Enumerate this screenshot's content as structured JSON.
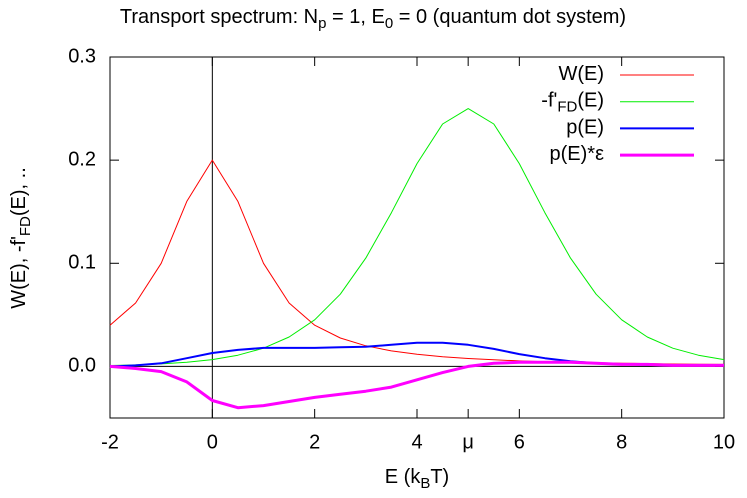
{
  "chart_data": {
    "type": "line",
    "title": [
      "Transport spectrum: N",
      "p",
      " = 1, E",
      "0",
      " = 0 (quantum dot system)"
    ],
    "xlabel": [
      "E (k",
      "B",
      "T)"
    ],
    "ylabel": [
      "W(E), -f'",
      "FD",
      "(E), .."
    ],
    "x": [
      -2,
      -1.5,
      -1,
      -0.5,
      0,
      0.5,
      1,
      1.5,
      2,
      2.5,
      3,
      3.5,
      4,
      4.5,
      5,
      5.5,
      6,
      6.5,
      7,
      7.5,
      8,
      8.5,
      9,
      9.5,
      10
    ],
    "series": [
      {
        "name": [
          "W(E)"
        ],
        "color": "#ff0000",
        "width": 1,
        "values": [
          0.04,
          0.0615,
          0.1,
          0.16,
          0.2,
          0.16,
          0.1,
          0.0615,
          0.04,
          0.0276,
          0.02,
          0.0151,
          0.0118,
          0.0094,
          0.0077,
          0.0064,
          0.0054,
          0.0046,
          0.004,
          0.0035,
          0.0031,
          0.0027,
          0.0024,
          0.0022,
          0.002
        ]
      },
      {
        "name": [
          "-f'",
          "FD",
          "(E)"
        ],
        "color": "#00ee00",
        "width": 1,
        "values": [
          0.0009,
          0.0015,
          0.0025,
          0.0041,
          0.0066,
          0.0109,
          0.0177,
          0.0285,
          0.0452,
          0.07,
          0.105,
          0.149,
          0.1966,
          0.235,
          0.25,
          0.235,
          0.1966,
          0.149,
          0.105,
          0.07,
          0.0452,
          0.0285,
          0.0177,
          0.0109,
          0.0066
        ]
      },
      {
        "name": [
          "p(E)"
        ],
        "color": "#0000ff",
        "width": 2,
        "values": [
          0.0,
          0.001,
          0.003,
          0.008,
          0.013,
          0.016,
          0.018,
          0.018,
          0.018,
          0.0185,
          0.019,
          0.021,
          0.023,
          0.023,
          0.021,
          0.017,
          0.012,
          0.008,
          0.005,
          0.003,
          0.002,
          0.0015,
          0.001,
          0.001,
          0.001
        ]
      },
      {
        "name": [
          "p(E)*ε"
        ],
        "color": "#ff00ff",
        "width": 3,
        "values": [
          0.0,
          -0.002,
          -0.005,
          -0.015,
          -0.033,
          -0.04,
          -0.038,
          -0.034,
          -0.03,
          -0.027,
          -0.024,
          -0.02,
          -0.013,
          -0.006,
          0.0,
          0.003,
          0.004,
          0.004,
          0.004,
          0.003,
          0.002,
          0.002,
          0.001,
          0.001,
          0.001
        ]
      }
    ],
    "xlim": [
      -2,
      10
    ],
    "ylim": [
      -0.05,
      0.3
    ],
    "xticks": [
      -2,
      0,
      2,
      4,
      {
        "value": 5,
        "label": "μ"
      },
      6,
      8,
      10
    ],
    "yticks": [
      {
        "value": 0,
        "label": "0.0"
      },
      0.1,
      0.2,
      0.3
    ],
    "legend": "top-right",
    "zeroaxes": true
  }
}
